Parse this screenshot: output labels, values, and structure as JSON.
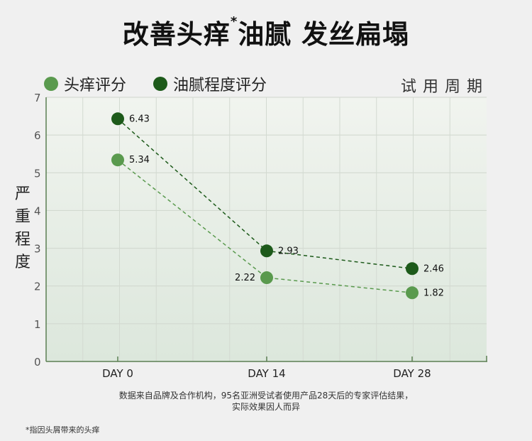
{
  "header": {
    "title_part1": "改善头痒",
    "title_marker": "*",
    "title_part2": "油腻 发丝扁塌"
  },
  "legend": [
    {
      "label": "头痒评分",
      "color": "#5a9a4e"
    },
    {
      "label": "油腻程度评分",
      "color": "#1d5a1a"
    }
  ],
  "period_label": "试用周期",
  "y_axis_label": [
    "严",
    "重",
    "程",
    "度"
  ],
  "chart_data": {
    "type": "line",
    "categories": [
      "DAY 0",
      "DAY 14",
      "DAY 28"
    ],
    "ylim": [
      0,
      7
    ],
    "yticks": [
      0,
      1,
      2,
      3,
      4,
      5,
      6,
      7
    ],
    "grid": true,
    "xlabel": "试用周期",
    "ylabel": "严重程度",
    "series": [
      {
        "name": "头痒评分",
        "values": [
          5.34,
          2.22,
          1.82
        ],
        "color": "#5a9a4e",
        "label_side": [
          "right",
          "left",
          "right"
        ]
      },
      {
        "name": "油腻程度评分",
        "values": [
          6.43,
          2.93,
          2.46
        ],
        "color": "#1d5a1a",
        "label_side": [
          "right",
          "right",
          "right"
        ]
      }
    ]
  },
  "note": [
    "数据来自品牌及合作机构，95名亚洲受试者使用产品28天后的专家评估结果，",
    "实际效果因人而异"
  ],
  "footnote": "*指因头屑带来的头痒"
}
